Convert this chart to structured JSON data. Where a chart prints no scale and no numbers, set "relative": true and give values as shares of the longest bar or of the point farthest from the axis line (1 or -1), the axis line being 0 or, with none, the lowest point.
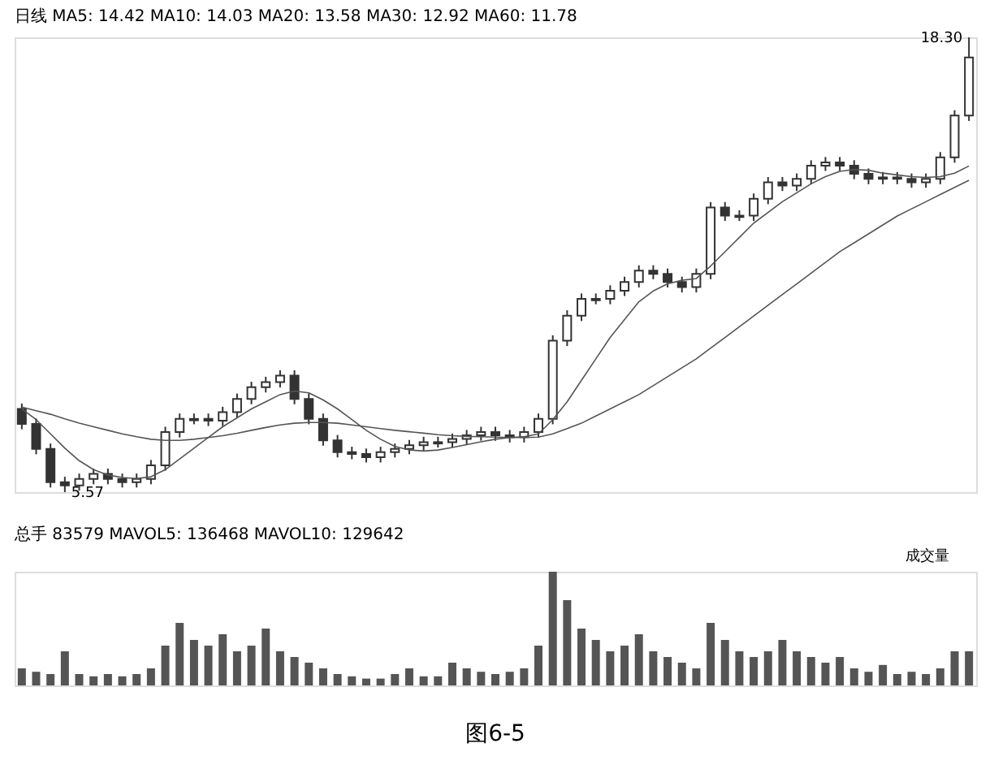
{
  "chart_data": [
    {
      "type": "candlestick",
      "title": "日线 MA5: 14.42 MA10: 14.03 MA20: 13.58 MA30: 12.92 MA60: 11.78",
      "color": "#333333",
      "categories": [
        null,
        null,
        null,
        null,
        null,
        null,
        null,
        null,
        null,
        null,
        null,
        null,
        null,
        null,
        null,
        null,
        null,
        null,
        null,
        null,
        null,
        null,
        null,
        null,
        null,
        null,
        null,
        null,
        null,
        null,
        null,
        null,
        null,
        null,
        null,
        null,
        null,
        null,
        null,
        null,
        null,
        null,
        null,
        null,
        null,
        null,
        null,
        null,
        null,
        null,
        null,
        null,
        null,
        null,
        null,
        null,
        null,
        null,
        null,
        null,
        null,
        null,
        null,
        null,
        null,
        null,
        null
      ],
      "ohlc": [
        [
          7.9,
          8.05,
          7.33,
          7.48
        ],
        [
          7.48,
          7.63,
          6.63,
          6.78
        ],
        [
          6.78,
          6.93,
          5.7,
          5.85
        ],
        [
          5.85,
          6.0,
          5.57,
          5.76
        ],
        [
          5.76,
          6.09,
          5.61,
          5.94
        ],
        [
          5.94,
          6.23,
          5.79,
          6.08
        ],
        [
          6.08,
          6.23,
          5.79,
          5.94
        ],
        [
          5.94,
          6.09,
          5.7,
          5.85
        ],
        [
          5.85,
          6.09,
          5.7,
          5.94
        ],
        [
          5.94,
          6.47,
          5.79,
          6.32
        ],
        [
          6.32,
          7.4,
          6.17,
          7.25
        ],
        [
          7.25,
          7.77,
          7.1,
          7.62
        ],
        [
          7.58,
          7.77,
          7.47,
          7.62
        ],
        [
          7.62,
          7.77,
          7.42,
          7.57
        ],
        [
          7.57,
          7.96,
          7.42,
          7.81
        ],
        [
          7.81,
          8.33,
          7.66,
          8.18
        ],
        [
          8.18,
          8.66,
          8.03,
          8.51
        ],
        [
          8.51,
          8.8,
          8.36,
          8.65
        ],
        [
          8.65,
          8.98,
          8.5,
          8.83
        ],
        [
          8.83,
          8.98,
          8.03,
          8.18
        ],
        [
          8.18,
          8.33,
          7.47,
          7.62
        ],
        [
          7.62,
          7.77,
          6.87,
          7.02
        ],
        [
          7.02,
          7.17,
          6.54,
          6.69
        ],
        [
          6.69,
          6.84,
          6.49,
          6.64
        ],
        [
          6.64,
          6.79,
          6.4,
          6.55
        ],
        [
          6.55,
          6.84,
          6.4,
          6.69
        ],
        [
          6.69,
          6.93,
          6.54,
          6.78
        ],
        [
          6.78,
          7.03,
          6.63,
          6.88
        ],
        [
          6.88,
          7.12,
          6.73,
          6.97
        ],
        [
          6.93,
          7.12,
          6.82,
          6.97
        ],
        [
          6.97,
          7.21,
          6.82,
          7.06
        ],
        [
          7.06,
          7.31,
          6.91,
          7.16
        ],
        [
          7.16,
          7.4,
          7.01,
          7.25
        ],
        [
          7.25,
          7.4,
          7.01,
          7.16
        ],
        [
          7.16,
          7.31,
          6.96,
          7.11
        ],
        [
          7.11,
          7.4,
          6.96,
          7.25
        ],
        [
          7.25,
          7.77,
          7.1,
          7.62
        ],
        [
          7.62,
          9.96,
          7.47,
          9.81
        ],
        [
          9.81,
          10.66,
          9.66,
          10.51
        ],
        [
          10.51,
          11.13,
          10.36,
          10.98
        ],
        [
          10.94,
          11.13,
          10.83,
          10.98
        ],
        [
          10.98,
          11.36,
          10.83,
          11.21
        ],
        [
          11.21,
          11.6,
          11.06,
          11.45
        ],
        [
          11.45,
          11.92,
          11.3,
          11.77
        ],
        [
          11.77,
          11.92,
          11.53,
          11.68
        ],
        [
          11.68,
          11.83,
          11.3,
          11.45
        ],
        [
          11.45,
          11.6,
          11.16,
          11.31
        ],
        [
          11.31,
          11.83,
          11.16,
          11.68
        ],
        [
          11.68,
          13.69,
          11.53,
          13.54
        ],
        [
          13.54,
          13.69,
          13.16,
          13.31
        ],
        [
          13.27,
          13.46,
          13.16,
          13.31
        ],
        [
          13.31,
          13.93,
          13.16,
          13.78
        ],
        [
          13.78,
          14.39,
          13.63,
          14.24
        ],
        [
          14.24,
          14.39,
          14.0,
          14.15
        ],
        [
          14.15,
          14.49,
          14.0,
          14.34
        ],
        [
          14.34,
          14.86,
          14.19,
          14.71
        ],
        [
          14.71,
          14.95,
          14.56,
          14.8
        ],
        [
          14.8,
          14.95,
          14.56,
          14.71
        ],
        [
          14.71,
          14.86,
          14.33,
          14.48
        ],
        [
          14.48,
          14.63,
          14.19,
          14.34
        ],
        [
          14.34,
          14.53,
          14.19,
          14.38
        ],
        [
          14.38,
          14.53,
          14.19,
          14.34
        ],
        [
          14.34,
          14.49,
          14.09,
          14.24
        ],
        [
          14.24,
          14.49,
          14.09,
          14.34
        ],
        [
          14.34,
          15.09,
          14.19,
          14.94
        ],
        [
          14.94,
          16.26,
          14.79,
          16.11
        ],
        [
          16.11,
          18.3,
          15.96,
          17.74
        ]
      ],
      "series": [
        {
          "type": "line",
          "color": "#555555",
          "values": [
            7.9,
            7.6,
            7.2,
            6.8,
            6.45,
            6.2,
            6.05,
            5.98,
            5.95,
            6.0,
            6.2,
            6.5,
            6.8,
            7.1,
            7.4,
            7.65,
            7.9,
            8.1,
            8.3,
            8.4,
            8.35,
            8.15,
            7.9,
            7.6,
            7.3,
            7.05,
            6.85,
            6.75,
            6.72,
            6.75,
            6.82,
            6.9,
            6.98,
            7.05,
            7.1,
            7.12,
            7.2,
            7.6,
            8.1,
            8.7,
            9.3,
            9.9,
            10.4,
            10.9,
            11.2,
            11.4,
            11.5,
            11.55,
            11.9,
            12.3,
            12.7,
            13.1,
            13.4,
            13.7,
            13.95,
            14.2,
            14.4,
            14.55,
            14.6,
            14.58,
            14.5,
            14.45,
            14.4,
            14.38,
            14.4,
            14.5,
            14.7
          ]
        },
        {
          "type": "line",
          "color": "#555555",
          "values": [
            7.95,
            7.85,
            7.75,
            7.62,
            7.5,
            7.4,
            7.3,
            7.2,
            7.12,
            7.05,
            7.02,
            7.02,
            7.05,
            7.1,
            7.15,
            7.22,
            7.3,
            7.38,
            7.45,
            7.5,
            7.52,
            7.52,
            7.5,
            7.45,
            7.4,
            7.35,
            7.3,
            7.26,
            7.22,
            7.18,
            7.15,
            7.13,
            7.12,
            7.11,
            7.1,
            7.1,
            7.11,
            7.2,
            7.35,
            7.5,
            7.7,
            7.9,
            8.1,
            8.3,
            8.55,
            8.8,
            9.05,
            9.3,
            9.6,
            9.9,
            10.2,
            10.5,
            10.8,
            11.1,
            11.4,
            11.7,
            12.0,
            12.3,
            12.55,
            12.8,
            13.05,
            13.3,
            13.5,
            13.7,
            13.9,
            14.1,
            14.3
          ]
        }
      ],
      "annotations": [
        "5.57",
        "18.30"
      ]
    },
    {
      "type": "bar",
      "relative": true,
      "color": "#555555",
      "title": "总手 83579 MAVOL5: 136468 MAVOL10: 129642",
      "categories": [
        null,
        null,
        null,
        null,
        null,
        null,
        null,
        null,
        null,
        null,
        null,
        null,
        null,
        null,
        null,
        null,
        null,
        null,
        null,
        null,
        null,
        null,
        null,
        null,
        null,
        null,
        null,
        null,
        null,
        null,
        null,
        null,
        null,
        null,
        null,
        null,
        null,
        null,
        null,
        null,
        null,
        null,
        null,
        null,
        null,
        null,
        null,
        null,
        null,
        null,
        null,
        null,
        null,
        null,
        null,
        null,
        null,
        null,
        null,
        null,
        null,
        null,
        null,
        null,
        null,
        null,
        null
      ],
      "values": [
        0.15,
        0.12,
        0.1,
        0.3,
        0.1,
        0.08,
        0.1,
        0.08,
        0.1,
        0.15,
        0.35,
        0.55,
        0.4,
        0.35,
        0.45,
        0.3,
        0.35,
        0.5,
        0.3,
        0.25,
        0.2,
        0.15,
        0.1,
        0.08,
        0.06,
        0.06,
        0.1,
        0.15,
        0.08,
        0.08,
        0.2,
        0.15,
        0.12,
        0.1,
        0.12,
        0.15,
        0.35,
        1.0,
        0.75,
        0.5,
        0.4,
        0.3,
        0.35,
        0.45,
        0.3,
        0.25,
        0.2,
        0.15,
        0.55,
        0.4,
        0.3,
        0.25,
        0.3,
        0.4,
        0.3,
        0.25,
        0.2,
        0.25,
        0.15,
        0.12,
        0.18,
        0.1,
        0.12,
        0.1,
        0.15,
        0.3,
        0.3
      ],
      "annotations": [
        "成交量",
        "图6-5"
      ]
    }
  ]
}
